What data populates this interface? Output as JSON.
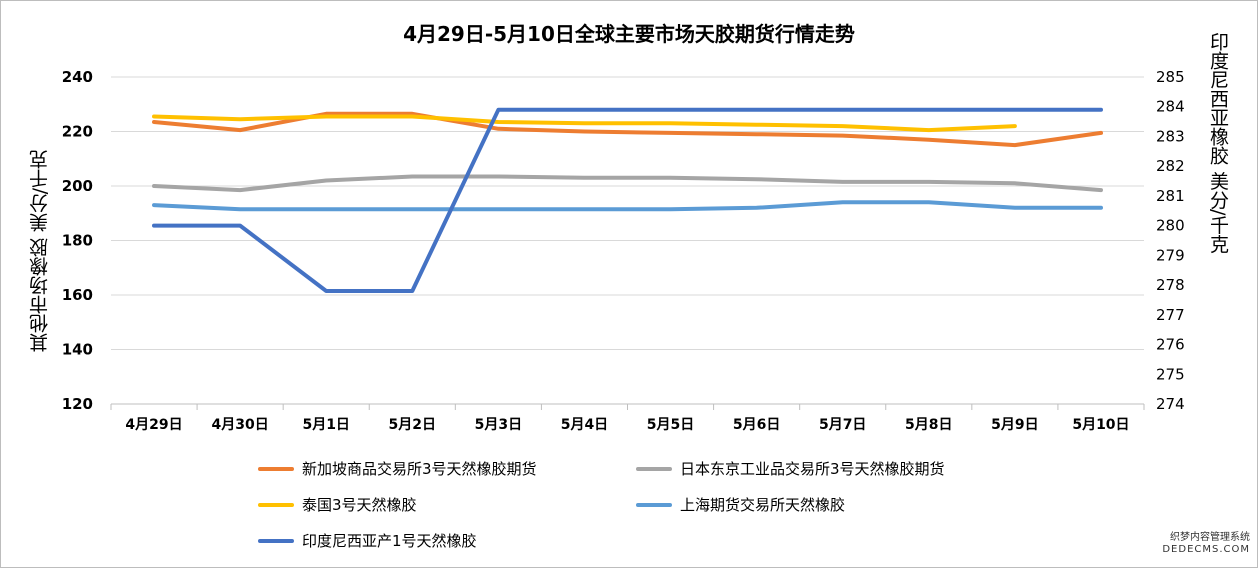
{
  "chart_data": {
    "type": "line",
    "title": "4月29日-5月10日全球主要市场天胶期货行情走势",
    "ylabel_left": "其他市场橡胶  美分/千克",
    "ylabel_right": "印度尼西亚橡胶  美分/千克",
    "categories": [
      "4月29日",
      "4月30日",
      "5月1日",
      "5月2日",
      "5月3日",
      "5月4日",
      "5月5日",
      "5月6日",
      "5月7日",
      "5月8日",
      "5月9日",
      "5月10日"
    ],
    "ylim_left": [
      120,
      240
    ],
    "yticks_left": [
      "240",
      "220",
      "200",
      "180",
      "160",
      "140",
      "120"
    ],
    "ylim_right": [
      274,
      285
    ],
    "yticks_right": [
      "285",
      "284",
      "283",
      "282",
      "281",
      "280",
      "279",
      "278",
      "277",
      "276",
      "275",
      "274"
    ],
    "grid": true,
    "legend_position": "bottom",
    "series": [
      {
        "name": "新加坡商品交易所3号天然橡胶期货",
        "axis": "left",
        "color": "#ED7D31",
        "values": [
          223.5,
          220.5,
          226.5,
          226.5,
          221,
          220,
          219.5,
          219,
          218.5,
          217,
          215,
          219.5
        ]
      },
      {
        "name": "日本东京工业品交易所3号天然橡胶期货",
        "axis": "left",
        "color": "#A5A5A5",
        "values": [
          200,
          198.5,
          202,
          203.5,
          203.5,
          203,
          203,
          202.5,
          201.5,
          201.5,
          201,
          198.5
        ]
      },
      {
        "name": "泰国3号天然橡胶",
        "axis": "left",
        "color": "#FFC000",
        "values": [
          225.5,
          224.5,
          225.5,
          225.5,
          223.5,
          223,
          223,
          222.5,
          222,
          220.5,
          222,
          null
        ]
      },
      {
        "name": "上海期货交易所天然橡胶",
        "axis": "left",
        "color": "#5B9BD5",
        "values": [
          193,
          191.5,
          191.5,
          191.5,
          191.5,
          191.5,
          191.5,
          192,
          194,
          194,
          192,
          192
        ]
      },
      {
        "name": "印度尼西亚产1号天然橡胶",
        "axis": "right",
        "color": "#4472C4",
        "values": [
          280,
          280,
          277.8,
          277.8,
          283.9,
          283.9,
          283.9,
          283.9,
          283.9,
          283.9,
          283.9,
          283.9
        ]
      }
    ]
  },
  "watermark": {
    "line1": "织梦内容管理系统",
    "line2": "DEDECMS.COM"
  }
}
